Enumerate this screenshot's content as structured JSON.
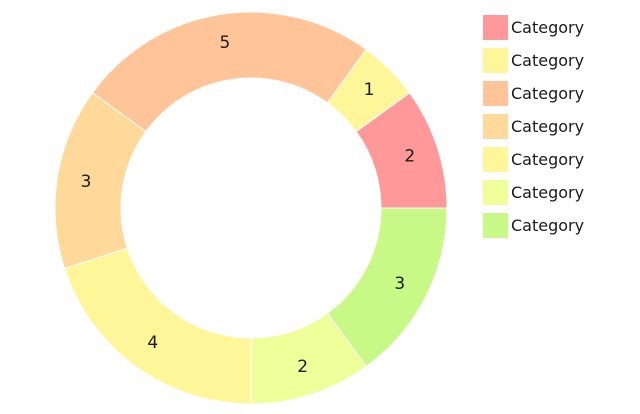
{
  "chart_data": {
    "type": "pie",
    "style": "donut",
    "categories": [
      "Category",
      "Category",
      "Category",
      "Category",
      "Category",
      "Category",
      "Category"
    ],
    "values": [
      2,
      1,
      5,
      3,
      4,
      2,
      3
    ],
    "colors": [
      "#ff9999",
      "#fff599",
      "#ffc599",
      "#ffd999",
      "#fff599",
      "#eeff99",
      "#c8f987"
    ],
    "legend_order": [
      0,
      1,
      2,
      3,
      4,
      5,
      6
    ],
    "legend_position": "top-right",
    "title": ""
  }
}
